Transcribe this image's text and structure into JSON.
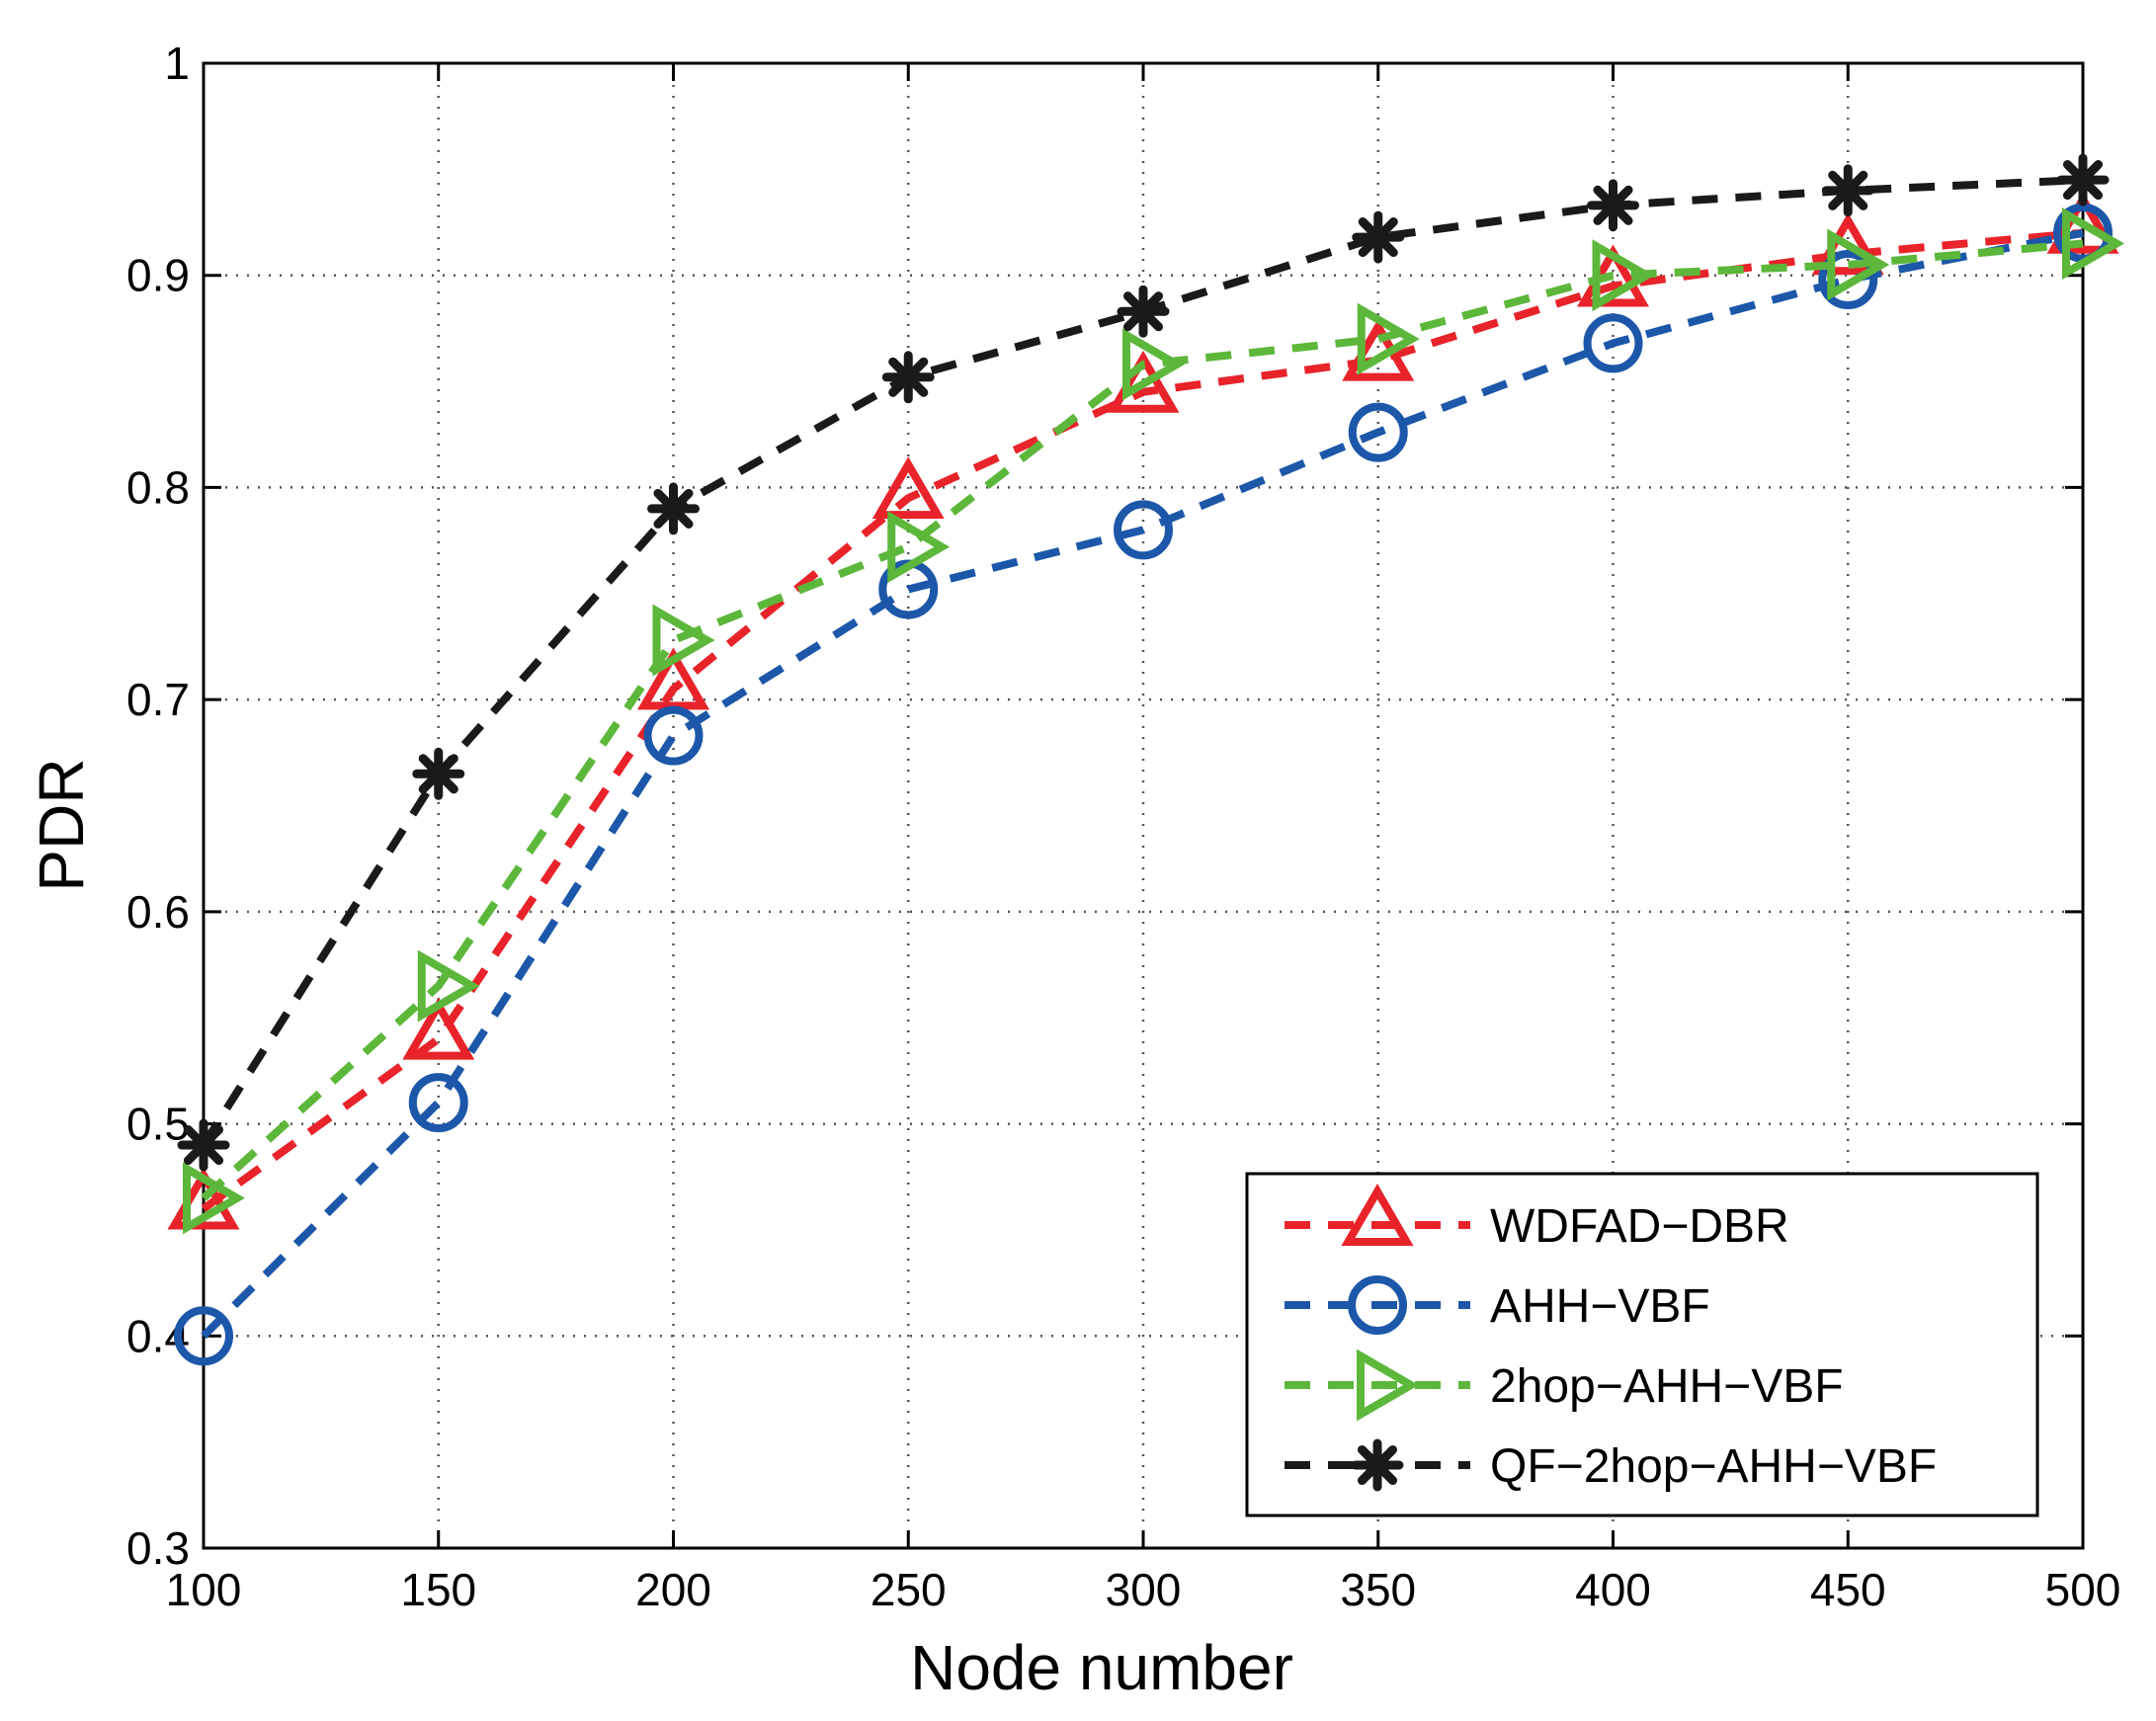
{
  "chart_data": {
    "type": "line",
    "title": "",
    "xlabel": "Node number",
    "ylabel": "PDR",
    "xlim": [
      100,
      500
    ],
    "ylim": [
      0.3,
      1
    ],
    "xticks": [
      100,
      150,
      200,
      250,
      300,
      350,
      400,
      450,
      500
    ],
    "xtick_labels": [
      "100",
      "150",
      "200",
      "250",
      "300",
      "350",
      "400",
      "450",
      "500"
    ],
    "yticks": [
      0.3,
      0.4,
      0.5,
      0.6,
      0.7,
      0.8,
      0.9,
      1
    ],
    "ytick_labels": [
      "0.3",
      "0.4",
      "0.5",
      "0.6",
      "0.7",
      "0.8",
      "0.9",
      "1"
    ],
    "grid": true,
    "legend_position": "bottom-right",
    "x": [
      100,
      150,
      200,
      250,
      300,
      350,
      400,
      450,
      500
    ],
    "series": [
      {
        "name": "WDFAD−DBR",
        "color": "#e8232a",
        "marker": "triangle-up",
        "values": [
          0.46,
          0.54,
          0.705,
          0.795,
          0.845,
          0.86,
          0.895,
          0.91,
          0.92
        ]
      },
      {
        "name": "AHH−VBF",
        "color": "#1c57a9",
        "marker": "circle",
        "values": [
          0.4,
          0.51,
          0.683,
          0.752,
          0.78,
          0.826,
          0.868,
          0.898,
          0.92
        ]
      },
      {
        "name": "2hop−AHH−VBF",
        "color": "#5cb73a",
        "marker": "triangle-right",
        "values": [
          0.465,
          0.565,
          0.728,
          0.772,
          0.858,
          0.87,
          0.9,
          0.905,
          0.915
        ]
      },
      {
        "name": "QF−2hop−AHH−VBF",
        "color": "#1a1a1a",
        "marker": "asterisk",
        "values": [
          0.49,
          0.665,
          0.79,
          0.852,
          0.883,
          0.918,
          0.933,
          0.94,
          0.945
        ]
      }
    ]
  }
}
